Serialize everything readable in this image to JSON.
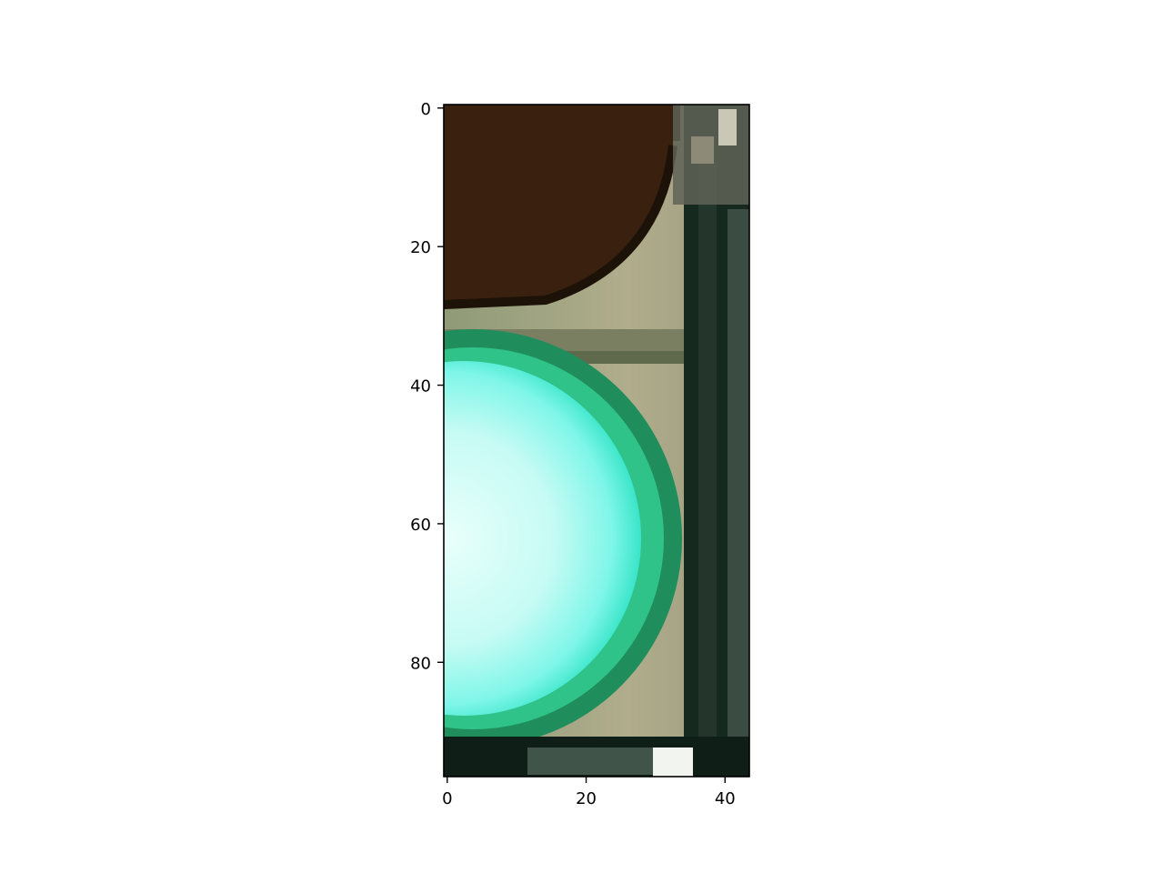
{
  "figure": {
    "image_subject": "traffic-light-green-lamp-crop",
    "image_extent": {
      "x": [
        -0.5,
        43.5
      ],
      "y": [
        96.5,
        -0.5
      ]
    },
    "x_ticks": [
      0,
      20,
      40
    ],
    "y_ticks": [
      0,
      20,
      40,
      60,
      80
    ],
    "x_tick_labels": [
      "0",
      "20",
      "40"
    ],
    "y_tick_labels": [
      "0",
      "20",
      "40",
      "60",
      "80"
    ]
  },
  "colors": {
    "upper_lens": "#3a200f",
    "housing": "#a7a887",
    "green_lamp": "#7ff6e8",
    "lamp_core": "#d8fcf6",
    "lamp_ring": "#1c9a64",
    "frame": "#16291e",
    "axes": "#000000"
  }
}
